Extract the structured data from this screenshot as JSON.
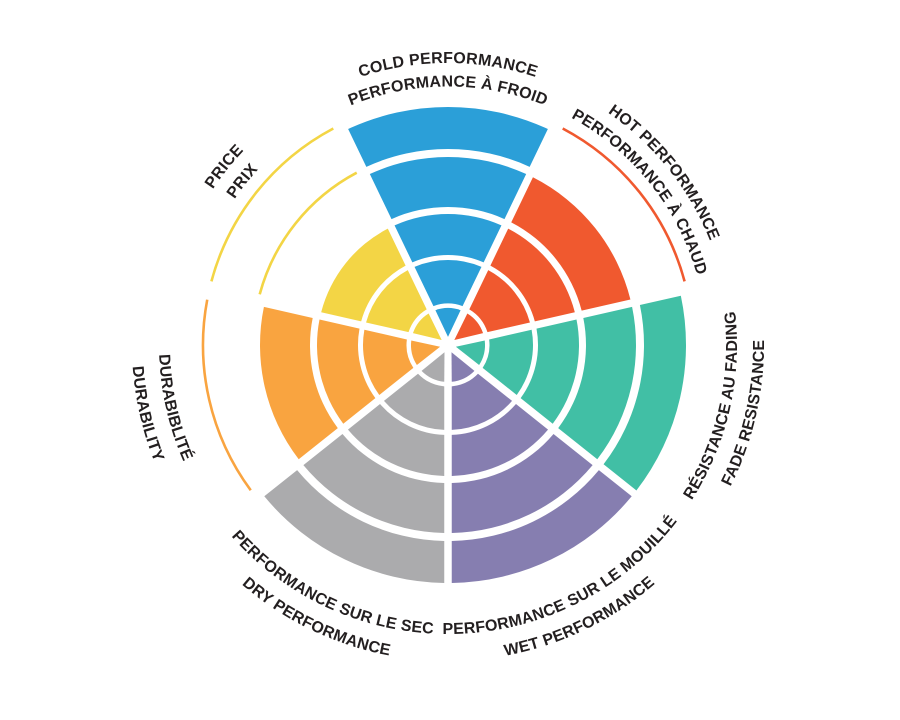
{
  "page": {
    "background": "#FFFFFF"
  },
  "chart_data": {
    "type": "radial-rating-wheel",
    "description": "Seven-sector performance rating wheel; each sector is a pie wedge filled from the center to its rating out of 5 concentric rings; rings not earned are drawn as thin outline arcs in the sector color; bilingual curved labels outside the wheel",
    "rings_total": 5,
    "text_color": "#231F20",
    "legend_position": "around-perimeter",
    "grid": "white ring and spoke separators",
    "sectors": [
      {
        "id": "cold-performance",
        "label_line1": "COLD PERFORMANCE",
        "label_line2": "PERFORMANCE À FROID",
        "value": 5,
        "color": "#2B9FD8",
        "label_flow": "clockwise"
      },
      {
        "id": "hot-performance",
        "label_line1": "HOT PERFORMANCE",
        "label_line2": "PERFORMANCE À CHAUD",
        "value": 4,
        "color": "#F0592F",
        "label_flow": "clockwise"
      },
      {
        "id": "fade-resistance",
        "label_line1": "RÉSISTANCE AU FADING",
        "label_line2": "FADE RESISTANCE",
        "value": 5,
        "color": "#41BFA5",
        "label_flow": "counterclockwise"
      },
      {
        "id": "wet-performance",
        "label_line1": "PERFORMANCE SUR LE MOUILLÉ",
        "label_line2": "WET PERFORMANCE",
        "value": 5,
        "color": "#867EB0",
        "label_flow": "counterclockwise"
      },
      {
        "id": "dry-performance",
        "label_line1": "PERFORMANCE SUR LE SEC",
        "label_line2": "DRY PERFORMANCE",
        "value": 5,
        "color": "#ABABAD",
        "label_flow": "counterclockwise"
      },
      {
        "id": "durability",
        "label_line1": "DURABIBLITÉ",
        "label_line2": "DURABILITY",
        "value": 4,
        "color": "#F9A440",
        "label_flow": "counterclockwise"
      },
      {
        "id": "price",
        "label_line1": "PRICE",
        "label_line2": "PRIX",
        "value": 3,
        "color": "#F3D545",
        "label_flow": "clockwise"
      }
    ]
  }
}
